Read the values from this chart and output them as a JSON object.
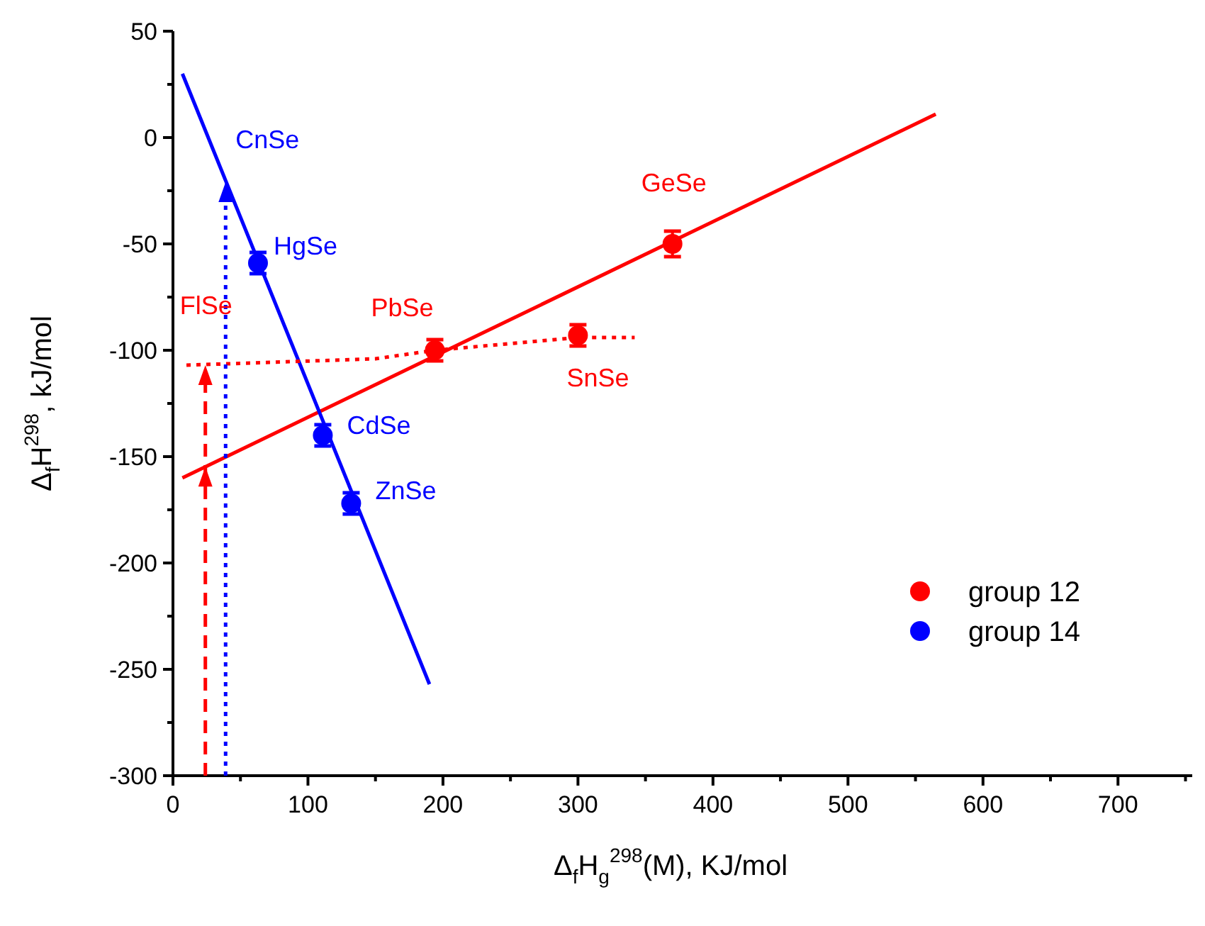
{
  "chart_data": {
    "type": "scatter",
    "xlabel": "Δ$_{f}$H$_{g}$$^{298}$(M), KJ/mol",
    "ylabel": "Δ$_{f}$H$^{298}$, kJ/mol",
    "xlim": [
      0,
      755
    ],
    "ylim": [
      -300,
      50
    ],
    "xticks": [
      0,
      {
        "value": 50,
        "label": null
      },
      100,
      {
        "value": 150,
        "label": null
      },
      200,
      {
        "value": 250,
        "label": null
      },
      300,
      {
        "value": 350,
        "label": null
      },
      400,
      {
        "value": 450,
        "label": null
      },
      500,
      {
        "value": 550,
        "label": null
      },
      600,
      {
        "value": 650,
        "label": null
      },
      700,
      {
        "value": 750,
        "label": null
      }
    ],
    "yticks": [
      -300,
      {
        "value": -275,
        "label": null
      },
      -250,
      {
        "value": -225,
        "label": null
      },
      -200,
      {
        "value": -175,
        "label": null
      },
      -150,
      {
        "value": -125,
        "label": null
      },
      -100,
      {
        "value": -75,
        "label": null
      },
      -50,
      {
        "value": -25,
        "label": null
      },
      0,
      {
        "value": 25,
        "label": null
      },
      50
    ],
    "grid": false,
    "legend": "right",
    "marker": "circle",
    "series": [
      {
        "name": "group 12",
        "color": "#ff0000",
        "x": [
          194,
          300,
          370
        ],
        "values": [
          -100,
          -93,
          -50
        ],
        "errors": [
          5,
          5,
          6
        ]
      },
      {
        "name": "group 14",
        "color": "#0000ff",
        "x": [
          63,
          111,
          132
        ],
        "values": [
          -59,
          -140,
          -172
        ],
        "errors": [
          5,
          5,
          5
        ]
      },
      {
        "type": "line",
        "color": "#ff0000",
        "x": [
          7,
          565
        ],
        "values": [
          -160,
          11
        ],
        "marker": "none",
        "line_style": "solid"
      },
      {
        "type": "line",
        "color": "#0000ff",
        "x": [
          7,
          190
        ],
        "values": [
          30,
          -257
        ],
        "marker": "none",
        "line_style": "solid"
      },
      {
        "type": "line",
        "color": "#ff0000",
        "x": [
          10,
          150,
          194,
          300,
          342
        ],
        "values": [
          -107,
          -104,
          -100,
          -94,
          -94
        ],
        "marker": "none",
        "line_style": "dotted"
      }
    ],
    "annotations": [
      {
        "text": "CnSe",
        "x": 39,
        "y": -21
      },
      {
        "text": "HgSe",
        "x": 63,
        "y": -59
      },
      {
        "text": "FlSe",
        "x": 24,
        "y": -107
      },
      {
        "text": "PbSe",
        "x": 194,
        "y": -100
      },
      {
        "text": "GeSe",
        "x": 370,
        "y": -50
      },
      {
        "text": "SnSe",
        "x": 300,
        "y": -93
      },
      {
        "text": "CdSe",
        "x": 111,
        "y": -140
      },
      {
        "text": "ZnSe",
        "x": 132,
        "y": -172
      }
    ]
  }
}
